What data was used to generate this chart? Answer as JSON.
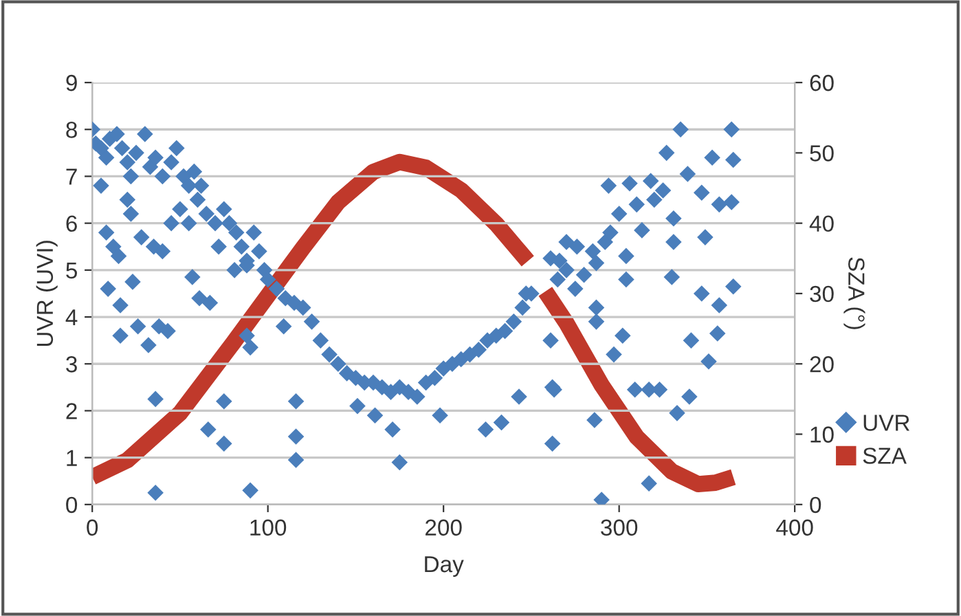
{
  "chart_data": {
    "type": "scatter",
    "xlabel": "Day",
    "ylabel": "UVR (UVI)",
    "y2label": "SZA (°)",
    "xlim": [
      0,
      400
    ],
    "xticks": [
      0,
      100,
      200,
      300,
      400
    ],
    "ylim": [
      0,
      9
    ],
    "yticks": [
      0,
      1,
      2,
      3,
      4,
      5,
      6,
      7,
      8,
      9
    ],
    "y2lim": [
      0,
      60
    ],
    "y2ticks": [
      0,
      10,
      20,
      30,
      40,
      50,
      60
    ],
    "grid": "y",
    "legend": "right",
    "series": [
      {
        "name": "UVR",
        "marker": "diamond",
        "color": "#4a7ebb",
        "x": [
          0,
          2,
          5,
          8,
          10,
          14,
          17,
          20,
          22,
          25,
          30,
          33,
          36,
          40,
          45,
          48,
          52,
          55,
          58,
          62,
          5,
          8,
          12,
          15,
          20,
          22,
          28,
          35,
          40,
          45,
          50,
          55,
          60,
          65,
          70,
          72,
          75,
          78,
          82,
          85,
          88,
          92,
          95,
          98,
          100,
          9,
          16,
          23,
          16,
          26,
          32,
          38,
          43,
          36,
          36,
          66,
          75,
          75,
          61,
          67,
          57,
          90,
          88,
          90,
          109,
          116,
          116,
          116,
          81,
          88,
          105,
          110,
          115,
          120,
          125,
          130,
          135,
          140,
          145,
          150,
          155,
          160,
          165,
          170,
          175,
          180,
          185,
          190,
          195,
          200,
          205,
          210,
          215,
          220,
          225,
          230,
          235,
          240,
          245,
          250,
          151,
          161,
          171,
          175,
          198,
          224,
          233,
          243,
          247,
          261,
          262,
          262,
          261,
          335,
          364,
          327,
          353,
          365,
          294,
          306,
          318,
          339,
          347,
          331,
          357,
          364,
          349,
          331,
          313,
          292,
          276,
          266,
          287,
          304,
          304,
          330,
          347,
          357,
          365,
          287,
          287,
          302,
          297,
          341,
          351,
          356,
          263,
          286,
          309,
          317,
          323,
          340,
          333,
          317,
          290,
          270,
          280,
          275,
          285,
          295,
          300,
          310,
          320,
          325,
          270,
          265
        ],
        "values": [
          8.0,
          7.7,
          7.6,
          7.4,
          7.8,
          7.9,
          7.6,
          7.3,
          7.0,
          7.5,
          7.9,
          7.2,
          7.4,
          7.0,
          7.3,
          7.6,
          7.0,
          6.8,
          7.1,
          6.8,
          6.8,
          5.8,
          5.5,
          5.3,
          6.5,
          6.2,
          5.7,
          5.5,
          5.4,
          6.0,
          6.3,
          6.0,
          6.5,
          6.2,
          6.0,
          5.5,
          6.3,
          6.0,
          5.8,
          5.5,
          5.2,
          5.8,
          5.4,
          5.0,
          4.8,
          4.6,
          4.25,
          4.75,
          3.6,
          3.8,
          3.4,
          3.8,
          3.7,
          2.25,
          0.25,
          1.6,
          1.3,
          2.2,
          4.4,
          4.3,
          4.85,
          3.35,
          3.6,
          0.3,
          3.8,
          2.2,
          1.45,
          0.95,
          5.0,
          5.1,
          4.6,
          4.4,
          4.3,
          4.2,
          3.9,
          3.5,
          3.2,
          3.0,
          2.8,
          2.7,
          2.6,
          2.6,
          2.5,
          2.4,
          2.5,
          2.4,
          2.3,
          2.6,
          2.7,
          2.9,
          3.0,
          3.1,
          3.2,
          3.3,
          3.5,
          3.6,
          3.7,
          3.9,
          4.2,
          4.5,
          2.1,
          1.9,
          1.6,
          0.9,
          1.9,
          1.6,
          1.75,
          2.3,
          4.5,
          3.5,
          2.5,
          1.3,
          5.25,
          8.0,
          8.0,
          7.5,
          7.4,
          7.35,
          6.8,
          6.85,
          6.9,
          7.05,
          6.65,
          6.1,
          6.4,
          6.45,
          5.7,
          5.6,
          5.85,
          5.6,
          5.5,
          5.2,
          5.15,
          5.3,
          4.8,
          4.85,
          4.5,
          4.25,
          4.65,
          4.2,
          3.9,
          3.6,
          3.2,
          3.5,
          3.05,
          3.65,
          2.45,
          1.8,
          2.45,
          2.45,
          2.45,
          2.3,
          1.95,
          0.45,
          0.1,
          5.0,
          4.9,
          4.6,
          5.4,
          5.8,
          6.2,
          6.4,
          6.5,
          6.7,
          5.6,
          4.8
        ]
      },
      {
        "name": "SZA",
        "type": "line",
        "axis": "y2",
        "color": "#c0392b",
        "x": [
          0,
          20,
          50,
          80,
          100,
          120,
          140,
          160,
          175,
          190,
          210,
          230,
          248,
          253,
          258,
          270,
          290,
          310,
          330,
          345,
          355,
          365
        ],
        "values": [
          3.9,
          6.3,
          13,
          22.9,
          29.7,
          36.5,
          43,
          47.3,
          48.7,
          47.9,
          44.7,
          39.9,
          34.6,
          null,
          30.3,
          25.8,
          17,
          9.6,
          4.7,
          2.9,
          3.1,
          3.9
        ]
      }
    ]
  }
}
